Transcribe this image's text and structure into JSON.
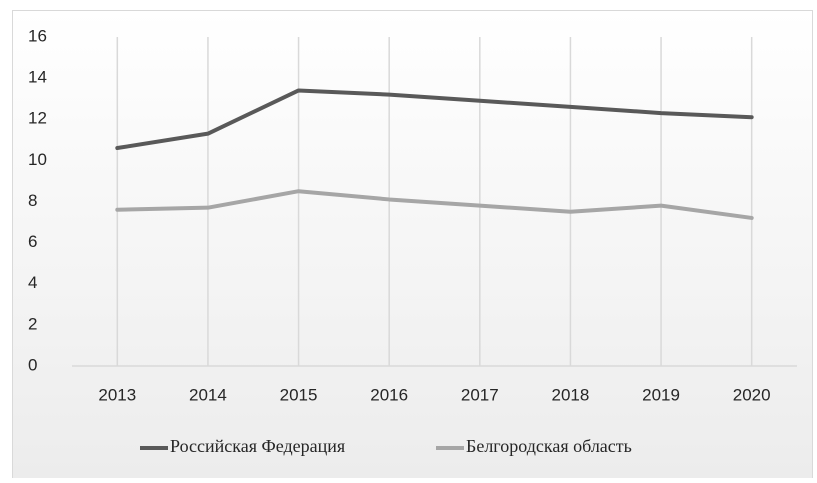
{
  "chart_data": {
    "type": "line",
    "categories": [
      "2013",
      "2014",
      "2015",
      "2016",
      "2017",
      "2018",
      "2019",
      "2020"
    ],
    "series": [
      {
        "name": "Российская Федерация",
        "color": "#595959",
        "values": [
          10.6,
          11.3,
          13.4,
          13.2,
          12.9,
          12.6,
          12.3,
          12.1
        ]
      },
      {
        "name": "Белгородская область",
        "color": "#a6a6a6",
        "values": [
          7.6,
          7.7,
          8.5,
          8.1,
          7.8,
          7.5,
          7.8,
          7.2
        ]
      }
    ],
    "ylim": [
      0,
      16
    ],
    "yticks": [
      0,
      2,
      4,
      6,
      8,
      10,
      12,
      14,
      16
    ],
    "grid": "x",
    "legend": "bottom"
  }
}
